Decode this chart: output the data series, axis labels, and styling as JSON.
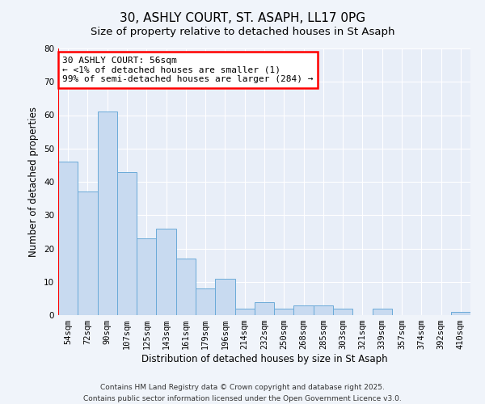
{
  "title": "30, ASHLY COURT, ST. ASAPH, LL17 0PG",
  "subtitle": "Size of property relative to detached houses in St Asaph",
  "xlabel": "Distribution of detached houses by size in St Asaph",
  "ylabel": "Number of detached properties",
  "categories": [
    "54sqm",
    "72sqm",
    "90sqm",
    "107sqm",
    "125sqm",
    "143sqm",
    "161sqm",
    "179sqm",
    "196sqm",
    "214sqm",
    "232sqm",
    "250sqm",
    "268sqm",
    "285sqm",
    "303sqm",
    "321sqm",
    "339sqm",
    "357sqm",
    "374sqm",
    "392sqm",
    "410sqm"
  ],
  "values": [
    46,
    37,
    61,
    43,
    23,
    26,
    17,
    8,
    11,
    2,
    4,
    2,
    3,
    3,
    2,
    0,
    2,
    0,
    0,
    0,
    1
  ],
  "bar_color": "#c8daf0",
  "bar_edge_color": "#6aaad8",
  "annotation_title": "30 ASHLY COURT: 56sqm",
  "annotation_line2": "← <1% of detached houses are smaller (1)",
  "annotation_line3": "99% of semi-detached houses are larger (284) →",
  "ylim": [
    0,
    80
  ],
  "background_color": "#f0f4fa",
  "plot_bg_color": "#e8eef8",
  "footer1": "Contains HM Land Registry data © Crown copyright and database right 2025.",
  "footer2": "Contains public sector information licensed under the Open Government Licence v3.0.",
  "title_fontsize": 11,
  "tick_fontsize": 7.5,
  "ylabel_fontsize": 8.5,
  "xlabel_fontsize": 8.5,
  "footer_fontsize": 6.5
}
